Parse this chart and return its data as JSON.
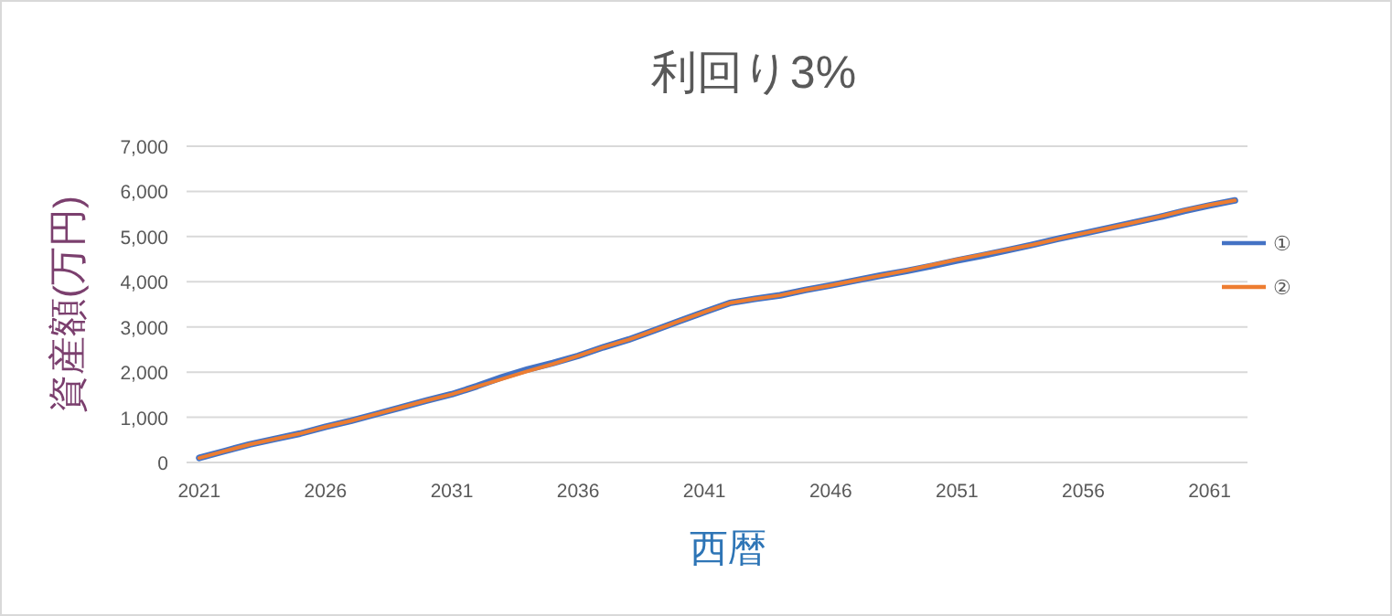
{
  "chart_data": {
    "type": "line",
    "title": "利回り3%",
    "xlabel": "西暦",
    "ylabel": "資産額(万円)",
    "categories": [
      "2021",
      null,
      null,
      null,
      null,
      "2026",
      null,
      null,
      null,
      null,
      "2031",
      null,
      null,
      null,
      null,
      "2036",
      null,
      null,
      null,
      null,
      "2041",
      null,
      null,
      null,
      null,
      "2046",
      null,
      null,
      null,
      null,
      "2051",
      null,
      null,
      null,
      null,
      "2056",
      null,
      null,
      null,
      null,
      "2061",
      null
    ],
    "series": [
      {
        "name": "①",
        "color": "#4472c4",
        "values": [
          100,
          250,
          400,
          520,
          640,
          790,
          920,
          1070,
          1220,
          1370,
          1510,
          1690,
          1890,
          2060,
          2200,
          2360,
          2550,
          2720,
          2920,
          3130,
          3330,
          3530,
          3620,
          3700,
          3820,
          3920,
          4030,
          4140,
          4240,
          4350,
          4470,
          4580,
          4700,
          4820,
          4950,
          5070,
          5190,
          5310,
          5430,
          5570,
          5690,
          5800
        ]
      },
      {
        "name": "②",
        "color": "#ed7d31",
        "values": [
          100,
          250,
          400,
          520,
          640,
          790,
          920,
          1070,
          1220,
          1370,
          1510,
          1680,
          1850,
          2020,
          2180,
          2360,
          2550,
          2720,
          2920,
          3130,
          3330,
          3530,
          3620,
          3700,
          3820,
          3920,
          4030,
          4140,
          4250,
          4370,
          4490,
          4600,
          4710,
          4820,
          4950,
          5070,
          5190,
          5310,
          5440,
          5580,
          5700,
          5800
        ]
      }
    ],
    "ylim": [
      0,
      7000
    ],
    "yticks": [
      0,
      {
        "value": 1000,
        "label": "1,000"
      },
      {
        "value": 2000,
        "label": "2,000"
      },
      {
        "value": 3000,
        "label": "3,000"
      },
      {
        "value": 4000,
        "label": "4,000"
      },
      {
        "value": 5000,
        "label": "5,000"
      },
      {
        "value": 6000,
        "label": "6,000"
      },
      {
        "value": 7000,
        "label": "7,000"
      }
    ],
    "grid": "y",
    "legend": "right"
  }
}
